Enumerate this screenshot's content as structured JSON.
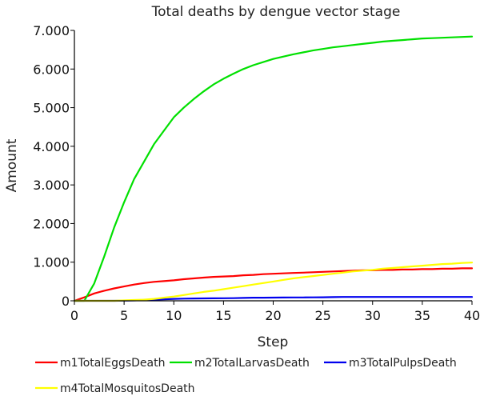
{
  "chart_data": {
    "type": "line",
    "title": "Total deaths by dengue vector stage",
    "xlabel": "Step",
    "ylabel": "Amount",
    "xlim": [
      0,
      40
    ],
    "ylim": [
      0,
      7000
    ],
    "x_ticks": [
      0,
      5,
      10,
      15,
      20,
      25,
      30,
      35,
      40
    ],
    "x_tick_labels": [
      "0",
      "5",
      "10",
      "15",
      "20",
      "25",
      "30",
      "35",
      "40"
    ],
    "y_ticks": [
      0,
      1000,
      2000,
      3000,
      4000,
      5000,
      6000,
      7000
    ],
    "y_tick_labels": [
      "0",
      "1.000",
      "2.000",
      "3.000",
      "4.000",
      "5.000",
      "6.000",
      "7.000"
    ],
    "grid": false,
    "legend_position": "bottom",
    "x": [
      0,
      1,
      2,
      3,
      4,
      5,
      6,
      7,
      8,
      9,
      10,
      11,
      12,
      13,
      14,
      15,
      16,
      17,
      18,
      19,
      20,
      21,
      22,
      23,
      24,
      25,
      26,
      27,
      28,
      29,
      30,
      31,
      32,
      33,
      34,
      35,
      36,
      37,
      38,
      39,
      40
    ],
    "series": [
      {
        "name": "m1TotalEggsDeath",
        "color": "#ff0000",
        "values": [
          0,
          90,
          190,
          260,
          320,
          370,
          420,
          460,
          490,
          510,
          530,
          560,
          580,
          600,
          620,
          630,
          640,
          660,
          670,
          690,
          700,
          710,
          720,
          730,
          740,
          750,
          760,
          770,
          780,
          790,
          790,
          800,
          800,
          810,
          810,
          820,
          820,
          830,
          830,
          840,
          840
        ]
      },
      {
        "name": "m2TotalLarvasDeath",
        "color": "#00e000",
        "values": [
          0,
          0,
          450,
          1150,
          1900,
          2550,
          3150,
          3600,
          4050,
          4400,
          4750,
          5000,
          5220,
          5420,
          5600,
          5750,
          5880,
          6000,
          6100,
          6180,
          6260,
          6320,
          6380,
          6430,
          6480,
          6520,
          6560,
          6590,
          6620,
          6650,
          6680,
          6710,
          6730,
          6750,
          6770,
          6790,
          6800,
          6810,
          6820,
          6830,
          6840
        ]
      },
      {
        "name": "m3TotalPulpsDeath",
        "color": "#0000ee",
        "values": [
          0,
          0,
          0,
          0,
          0,
          5,
          10,
          20,
          30,
          40,
          50,
          55,
          60,
          62,
          64,
          66,
          68,
          75,
          80,
          80,
          82,
          84,
          86,
          88,
          90,
          92,
          95,
          100,
          100,
          100,
          100,
          100,
          100,
          100,
          100,
          100,
          100,
          100,
          100,
          100,
          100
        ]
      },
      {
        "name": "m4TotalMosquitosDeath",
        "color": "#ffff00",
        "values": [
          0,
          0,
          0,
          0,
          0,
          10,
          20,
          30,
          50,
          80,
          110,
          150,
          190,
          230,
          260,
          300,
          340,
          380,
          420,
          460,
          500,
          540,
          580,
          610,
          640,
          670,
          700,
          730,
          760,
          780,
          800,
          830,
          850,
          870,
          890,
          910,
          930,
          950,
          960,
          980,
          990
        ]
      }
    ]
  }
}
